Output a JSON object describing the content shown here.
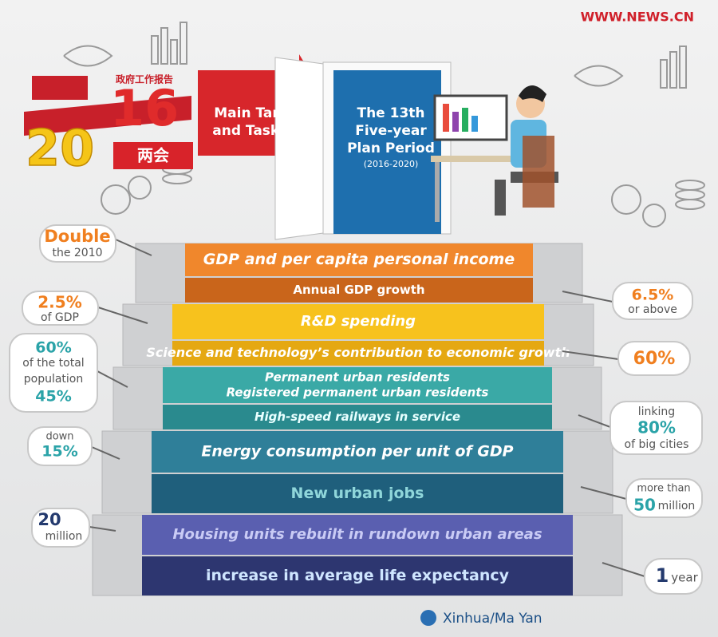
{
  "watermark": "WWW.NEWS.CN",
  "logo": {
    "caption": "政府工作报告",
    "year_left": "20",
    "year_right": "16",
    "label": "两会"
  },
  "banner": {
    "arrow_lines": [
      "Main Targets",
      "and Tasks for"
    ],
    "door_lines": [
      "The 13th",
      "Five-year",
      "Plan Period"
    ],
    "door_years": "(2016-2020)"
  },
  "steps": [
    {
      "lines": [
        "GDP and per capita personal income"
      ]
    },
    {
      "lines": [
        "Annual GDP growth"
      ]
    },
    {
      "lines": [
        "R&D spending"
      ]
    },
    {
      "lines": [
        "Science and technology’s contribution to economic growth"
      ]
    },
    {
      "lines": [
        "Permanent urban residents",
        "Registered permanent urban residents"
      ]
    },
    {
      "lines": [
        "High-speed railways in service"
      ]
    },
    {
      "lines": [
        "Energy consumption per unit of GDP"
      ]
    },
    {
      "lines": [
        "New urban jobs"
      ]
    },
    {
      "lines": [
        "Housing units rebuilt in rundown urban areas"
      ]
    },
    {
      "lines": [
        "increase in average life expectancy"
      ]
    }
  ],
  "callouts": [
    {
      "lines": [
        "Double",
        "the 2010"
      ]
    },
    {
      "lines": [
        "2.5%",
        "of GDP"
      ]
    },
    {
      "lines": [
        "60%",
        "of the total",
        "population",
        "45%"
      ]
    },
    {
      "lines": [
        "down",
        "15%"
      ]
    },
    {
      "lines": [
        "20",
        "million"
      ]
    },
    {
      "lines": [
        "6.5%",
        "or above"
      ]
    },
    {
      "lines": [
        "60%"
      ]
    },
    {
      "lines": [
        "linking",
        "80%",
        "of big cities"
      ]
    },
    {
      "lines": [
        "more than",
        "50",
        "million"
      ]
    },
    {
      "lines": [
        "1",
        "year"
      ]
    }
  ],
  "credit": "Xinhua/Ma Yan"
}
